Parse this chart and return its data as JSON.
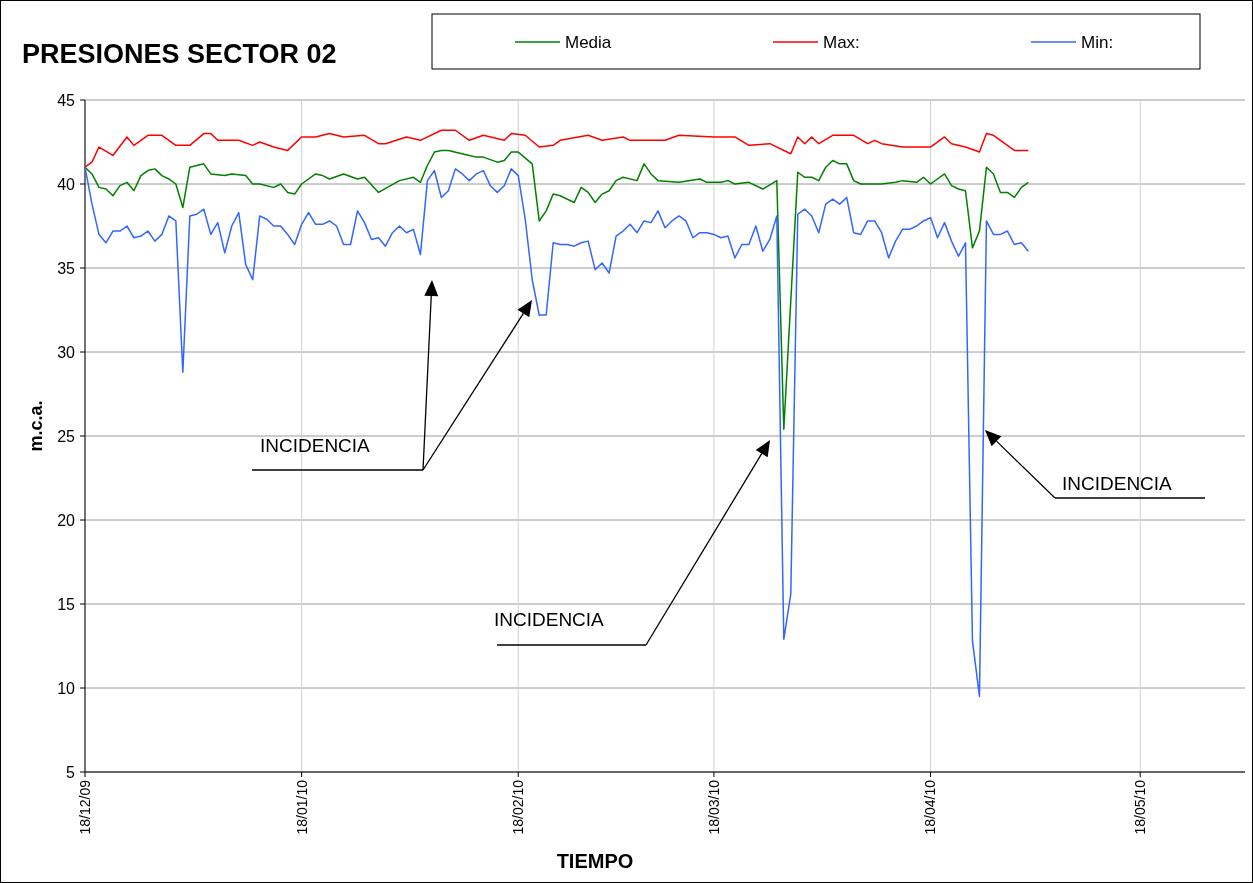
{
  "chart_data": {
    "type": "line",
    "title": "PRESIONES SECTOR 02",
    "xlabel": "TIEMPO",
    "ylabel": "m.c.a.",
    "xlim": [
      "2009-12-18",
      "2010-06-02"
    ],
    "xticks": [
      {
        "value": "2009-12-18",
        "label": "18/12/09"
      },
      {
        "value": "2010-01-18",
        "label": "18/01/10"
      },
      {
        "value": "2010-02-18",
        "label": "18/02/10"
      },
      {
        "value": "2010-03-18",
        "label": "18/03/10"
      },
      {
        "value": "2010-04-18",
        "label": "18/04/10"
      },
      {
        "value": "2010-05-18",
        "label": "18/05/10"
      }
    ],
    "ylim": [
      5,
      45
    ],
    "yticks": [
      5,
      10,
      15,
      20,
      25,
      30,
      35,
      40,
      45
    ],
    "grid": true,
    "legend": "top",
    "x": [
      "2009-12-18",
      "2009-12-19",
      "2009-12-20",
      "2009-12-21",
      "2009-12-22",
      "2009-12-23",
      "2009-12-24",
      "2009-12-25",
      "2009-12-26",
      "2009-12-27",
      "2009-12-28",
      "2009-12-29",
      "2009-12-30",
      "2009-12-31",
      "2010-01-01",
      "2010-01-02",
      "2010-01-03",
      "2010-01-04",
      "2010-01-05",
      "2010-01-06",
      "2010-01-07",
      "2010-01-08",
      "2010-01-09",
      "2010-01-10",
      "2010-01-11",
      "2010-01-12",
      "2010-01-13",
      "2010-01-14",
      "2010-01-15",
      "2010-01-16",
      "2010-01-17",
      "2010-01-18",
      "2010-01-19",
      "2010-01-20",
      "2010-01-21",
      "2010-01-22",
      "2010-01-23",
      "2010-01-24",
      "2010-01-25",
      "2010-01-26",
      "2010-01-27",
      "2010-01-28",
      "2010-01-29",
      "2010-01-30",
      "2010-01-31",
      "2010-02-01",
      "2010-02-02",
      "2010-02-03",
      "2010-02-04",
      "2010-02-05",
      "2010-02-06",
      "2010-02-07",
      "2010-02-08",
      "2010-02-09",
      "2010-02-10",
      "2010-02-11",
      "2010-02-12",
      "2010-02-13",
      "2010-02-14",
      "2010-02-15",
      "2010-02-16",
      "2010-02-17",
      "2010-02-18",
      "2010-02-19",
      "2010-02-20",
      "2010-02-21",
      "2010-02-22",
      "2010-02-23",
      "2010-02-24",
      "2010-02-25",
      "2010-02-26",
      "2010-02-27",
      "2010-02-28",
      "2010-03-01",
      "2010-03-02",
      "2010-03-03",
      "2010-03-04",
      "2010-03-05",
      "2010-03-06",
      "2010-03-07",
      "2010-03-08",
      "2010-03-09",
      "2010-03-10",
      "2010-03-11",
      "2010-03-12",
      "2010-03-13",
      "2010-03-14",
      "2010-03-15",
      "2010-03-16",
      "2010-03-17",
      "2010-03-18",
      "2010-03-19",
      "2010-03-20",
      "2010-03-21",
      "2010-03-22",
      "2010-03-23",
      "2010-03-24",
      "2010-03-25",
      "2010-03-26",
      "2010-03-27",
      "2010-03-28",
      "2010-03-29",
      "2010-03-30",
      "2010-03-31",
      "2010-04-01",
      "2010-04-02",
      "2010-04-03",
      "2010-04-04",
      "2010-04-05",
      "2010-04-06",
      "2010-04-07",
      "2010-04-08",
      "2010-04-09",
      "2010-04-10",
      "2010-04-11",
      "2010-04-12",
      "2010-04-13",
      "2010-04-14",
      "2010-04-15",
      "2010-04-16",
      "2010-04-17",
      "2010-04-18",
      "2010-04-19",
      "2010-04-20",
      "2010-04-21",
      "2010-04-22",
      "2010-04-23",
      "2010-04-24",
      "2010-04-25",
      "2010-04-26",
      "2010-04-27",
      "2010-04-28",
      "2010-04-29",
      "2010-04-30",
      "2010-05-01",
      "2010-05-02"
    ],
    "series": [
      {
        "name": "Media",
        "color": "#008000",
        "x": [
          "2009-12-18",
          "2009-12-19",
          "2009-12-20",
          "2009-12-21",
          "2009-12-22",
          "2009-12-23",
          "2009-12-24",
          "2009-12-25",
          "2009-12-26",
          "2009-12-27",
          "2009-12-28",
          "2009-12-29",
          "2009-12-30",
          "2009-12-31",
          "2010-01-01",
          "2010-01-02",
          "2010-01-03",
          "2010-01-04",
          "2010-01-05",
          "2010-01-07",
          "2010-01-08",
          "2010-01-10",
          "2010-01-11",
          "2010-01-12",
          "2010-01-14",
          "2010-01-15",
          "2010-01-16",
          "2010-01-17",
          "2010-01-18",
          "2010-01-20",
          "2010-01-21",
          "2010-01-22",
          "2010-01-24",
          "2010-01-26",
          "2010-01-27",
          "2010-01-29",
          "2010-02-01",
          "2010-02-03",
          "2010-02-04",
          "2010-02-05",
          "2010-02-06",
          "2010-02-07",
          "2010-02-08",
          "2010-02-11",
          "2010-02-12",
          "2010-02-13",
          "2010-02-15",
          "2010-02-16",
          "2010-02-17",
          "2010-02-18",
          "2010-02-20",
          "2010-02-21",
          "2010-02-22",
          "2010-02-23",
          "2010-02-24",
          "2010-02-26",
          "2010-02-27",
          "2010-02-28",
          "2010-03-01",
          "2010-03-02",
          "2010-03-03",
          "2010-03-04",
          "2010-03-05",
          "2010-03-07",
          "2010-03-08",
          "2010-03-09",
          "2010-03-10",
          "2010-03-13",
          "2010-03-16",
          "2010-03-17",
          "2010-03-19",
          "2010-03-20",
          "2010-03-21",
          "2010-03-23",
          "2010-03-25",
          "2010-03-27",
          "2010-03-28",
          "2010-03-30",
          "2010-03-31",
          "2010-04-01",
          "2010-04-02",
          "2010-04-03",
          "2010-04-04",
          "2010-04-05",
          "2010-04-06",
          "2010-04-07",
          "2010-04-08",
          "2010-04-10",
          "2010-04-11",
          "2010-04-13",
          "2010-04-14",
          "2010-04-16",
          "2010-04-17",
          "2010-04-18",
          "2010-04-20",
          "2010-04-21",
          "2010-04-22",
          "2010-04-23",
          "2010-04-24",
          "2010-04-25",
          "2010-04-26",
          "2010-04-27",
          "2010-04-28",
          "2010-04-29",
          "2010-04-30",
          "2010-05-01",
          "2010-05-02"
        ],
        "values": [
          41.0,
          40.6,
          39.8,
          39.7,
          39.3,
          39.9,
          40.1,
          39.6,
          40.5,
          40.8,
          40.9,
          40.5,
          40.3,
          40.0,
          38.6,
          41.0,
          41.1,
          41.2,
          40.6,
          40.5,
          40.6,
          40.5,
          40.0,
          40.0,
          39.8,
          40.0,
          39.5,
          39.4,
          40.0,
          40.6,
          40.5,
          40.3,
          40.6,
          40.3,
          40.4,
          39.5,
          40.2,
          40.4,
          40.1,
          41.1,
          41.9,
          42.0,
          42.0,
          41.7,
          41.6,
          41.6,
          41.3,
          41.4,
          41.9,
          41.9,
          41.2,
          37.8,
          38.4,
          39.4,
          39.3,
          38.9,
          39.8,
          39.5,
          38.9,
          39.4,
          39.6,
          40.2,
          40.4,
          40.2,
          41.2,
          40.6,
          40.2,
          40.1,
          40.3,
          40.1,
          40.1,
          40.2,
          40.0,
          40.1,
          39.7,
          40.2,
          25.4,
          40.7,
          40.4,
          40.4,
          40.2,
          41.0,
          41.4,
          41.2,
          41.2,
          40.2,
          40.0,
          40.0,
          40.0,
          40.1,
          40.2,
          40.1,
          40.4,
          40.0,
          40.6,
          39.9,
          39.7,
          39.6,
          36.2,
          37.2,
          41.0,
          40.6,
          39.5,
          39.5,
          39.2,
          39.8,
          40.1
        ]
      },
      {
        "name": "Max:",
        "color": "#ff0000",
        "x": [
          "2009-12-18",
          "2009-12-19",
          "2009-12-20",
          "2009-12-22",
          "2009-12-24",
          "2009-12-25",
          "2009-12-27",
          "2009-12-29",
          "2009-12-31",
          "2010-01-02",
          "2010-01-04",
          "2010-01-05",
          "2010-01-06",
          "2010-01-09",
          "2010-01-11",
          "2010-01-12",
          "2010-01-14",
          "2010-01-16",
          "2010-01-18",
          "2010-01-20",
          "2010-01-22",
          "2010-01-24",
          "2010-01-27",
          "2010-01-29",
          "2010-01-30",
          "2010-02-02",
          "2010-02-04",
          "2010-02-07",
          "2010-02-09",
          "2010-02-11",
          "2010-02-13",
          "2010-02-16",
          "2010-02-17",
          "2010-02-19",
          "2010-02-21",
          "2010-02-23",
          "2010-02-24",
          "2010-02-28",
          "2010-03-02",
          "2010-03-05",
          "2010-03-06",
          "2010-03-11",
          "2010-03-13",
          "2010-03-18",
          "2010-03-21",
          "2010-03-23",
          "2010-03-26",
          "2010-03-29",
          "2010-03-30",
          "2010-03-31",
          "2010-04-01",
          "2010-04-02",
          "2010-04-04",
          "2010-04-07",
          "2010-04-09",
          "2010-04-10",
          "2010-04-11",
          "2010-04-14",
          "2010-04-16",
          "2010-04-18",
          "2010-04-20",
          "2010-04-21",
          "2010-04-23",
          "2010-04-25",
          "2010-04-26",
          "2010-04-27",
          "2010-04-29",
          "2010-04-30",
          "2010-05-02"
        ],
        "values": [
          41.0,
          41.3,
          42.2,
          41.7,
          42.8,
          42.3,
          42.9,
          42.9,
          42.3,
          42.3,
          43.0,
          43.0,
          42.6,
          42.6,
          42.3,
          42.5,
          42.2,
          42.0,
          42.8,
          42.8,
          43.0,
          42.8,
          42.9,
          42.4,
          42.4,
          42.8,
          42.6,
          43.2,
          43.2,
          42.6,
          42.9,
          42.6,
          43.0,
          42.9,
          42.2,
          42.3,
          42.6,
          42.9,
          42.6,
          42.8,
          42.6,
          42.6,
          42.9,
          42.8,
          42.8,
          42.3,
          42.4,
          41.8,
          42.8,
          42.4,
          42.8,
          42.4,
          42.9,
          42.9,
          42.4,
          42.6,
          42.4,
          42.2,
          42.2,
          42.2,
          42.8,
          42.4,
          42.2,
          41.9,
          43.0,
          42.9,
          42.3,
          42.0,
          42.0
        ]
      },
      {
        "name": "Min:",
        "color": "#3366ff",
        "values": [
          41.0,
          38.8,
          37.0,
          36.5,
          37.2,
          37.2,
          37.5,
          36.8,
          36.9,
          37.2,
          36.6,
          37.0,
          38.1,
          37.8,
          28.8,
          38.1,
          38.2,
          38.5,
          37.0,
          37.7,
          35.9,
          37.5,
          38.3,
          35.2,
          34.3,
          38.1,
          37.9,
          37.5,
          37.5,
          37.0,
          36.4,
          37.6,
          38.3,
          37.6,
          37.6,
          37.8,
          37.5,
          36.4,
          36.4,
          38.4,
          37.7,
          36.7,
          36.8,
          36.3,
          37.1,
          37.5,
          37.1,
          37.3,
          35.8,
          40.2,
          40.8,
          39.2,
          39.6,
          40.9,
          40.6,
          40.2,
          40.6,
          40.8,
          39.9,
          39.5,
          39.9,
          40.9,
          40.5,
          37.9,
          34.3,
          32.2,
          32.2,
          36.5,
          36.4,
          36.4,
          36.3,
          36.5,
          36.6,
          34.9,
          35.3,
          34.7,
          36.9,
          37.2,
          37.6,
          37.1,
          37.8,
          37.7,
          38.4,
          37.4,
          37.8,
          38.1,
          37.8,
          36.8,
          37.1,
          37.1,
          37.0,
          36.8,
          36.9,
          35.6,
          36.4,
          36.4,
          37.5,
          36.0,
          36.7,
          38.1,
          12.9,
          15.6,
          38.2,
          38.5,
          38.1,
          37.1,
          38.8,
          39.1,
          38.8,
          39.2,
          37.1,
          37.0,
          37.8,
          37.8,
          37.1,
          35.6,
          36.6,
          37.3,
          37.3,
          37.5,
          37.8,
          38.0,
          36.8,
          37.7,
          36.6,
          35.7,
          36.5,
          12.8,
          9.5,
          37.8,
          37.0,
          37.0,
          37.2,
          36.4,
          36.5,
          36.0
        ]
      }
    ],
    "annotations": [
      "INCIDENCIA",
      "INCIDENCIA",
      "INCIDENCIA"
    ]
  }
}
